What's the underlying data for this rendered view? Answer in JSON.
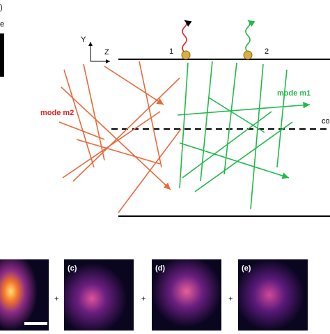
{
  "panel_a": {
    "label": ")",
    "side_text": "e",
    "axis_y": "Y",
    "axis_z": "Z",
    "emitters": [
      "1",
      "2"
    ],
    "mode_m1": "mode m1",
    "mode_m2": "mode m2",
    "core_label": "co"
  },
  "panels": [
    {
      "label": "(c)"
    },
    {
      "label": "(d)"
    },
    {
      "label": "(e)"
    }
  ],
  "operators": [
    "+",
    "+",
    "+"
  ]
}
